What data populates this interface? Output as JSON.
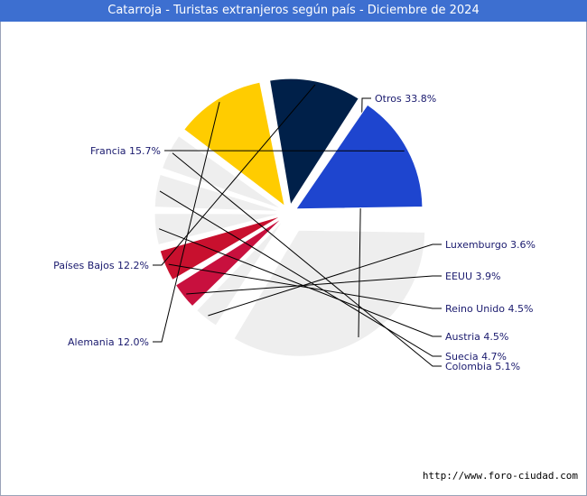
{
  "title": "Catarroja - Turistas extranjeros según país - Diciembre de 2024",
  "footer": "http://www.foro-ciudad.com",
  "chart_data": {
    "type": "pie",
    "slices": [
      {
        "label": "Otros",
        "value": 33.8,
        "display": "33.8%",
        "color": "#eeeeee"
      },
      {
        "label": "Luxemburgo",
        "value": 3.6,
        "display": "3.6%",
        "color": "#eeeeee"
      },
      {
        "label": "EEUU",
        "value": 3.9,
        "display": "3.9%",
        "color": "#c8103e"
      },
      {
        "label": "Reino Unido",
        "value": 4.5,
        "display": "4.5%",
        "color": "#c8102e"
      },
      {
        "label": "Austria",
        "value": 4.5,
        "display": "4.5%",
        "color": "#eeeeee"
      },
      {
        "label": "Suecia",
        "value": 4.7,
        "display": "4.7%",
        "color": "#eeeeee"
      },
      {
        "label": "Colombia",
        "value": 5.1,
        "display": "5.1%",
        "color": "#eeeeee"
      },
      {
        "label": "Alemania",
        "value": 12.0,
        "display": "12.0%",
        "color": "#ffcc00"
      },
      {
        "label": "Países Bajos",
        "value": 12.2,
        "display": "12.2%",
        "color": "#002049"
      },
      {
        "label": "Francia",
        "value": 15.7,
        "display": "15.7%",
        "color": "#1e45cf"
      }
    ]
  }
}
